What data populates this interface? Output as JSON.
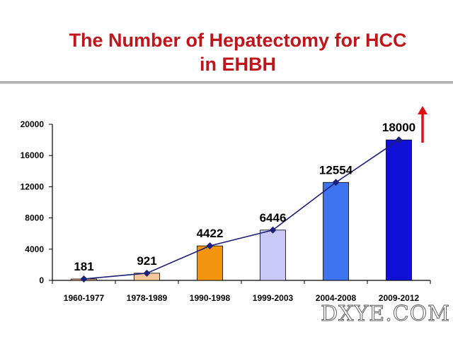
{
  "title_line1": "The Number of Hepatectomy for HCC",
  "title_line2": "in EHBH",
  "watermark": "DXYE.COM",
  "chart_data": {
    "type": "bar",
    "title": "The Number of Hepatectomy for HCC in EHBH",
    "xlabel": "",
    "ylabel": "",
    "categories": [
      "1960-1977",
      "1978-1989",
      "1990-1998",
      "1999-2003",
      "2004-2008",
      "2009-2012"
    ],
    "values": [
      181,
      921,
      4422,
      6446,
      12554,
      18000
    ],
    "data_labels": [
      "181",
      "921",
      "4422",
      "6446",
      "12554",
      "18000"
    ],
    "ylim": [
      0,
      20000
    ],
    "yticks": [
      0,
      4000,
      8000,
      12000,
      16000,
      20000
    ],
    "bar_colors": [
      "#f6b48c",
      "#f6c79a",
      "#f5950f",
      "#c9c9f7",
      "#3f74f0",
      "#1010d6"
    ],
    "line_overlay": true,
    "line_color": "#1a1f7a",
    "trend_arrow": "up",
    "trend_arrow_color": "#e01010",
    "grid": false,
    "legend": "none"
  }
}
